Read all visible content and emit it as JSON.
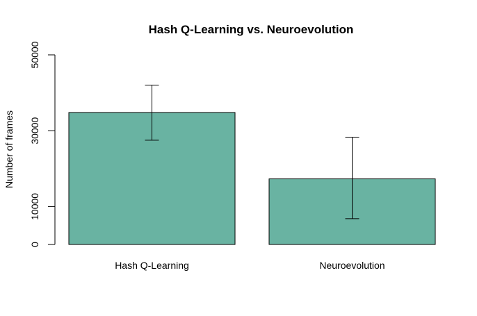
{
  "chart_data": {
    "type": "bar",
    "title": "Hash Q-Learning vs. Neuroevolution",
    "xlabel": "",
    "ylabel": "Number of frames",
    "categories": [
      "Hash Q-Learning",
      "Neuroevolution"
    ],
    "values": [
      34800,
      17300
    ],
    "error_low": [
      27500,
      6800
    ],
    "error_high": [
      42000,
      28300
    ],
    "ylim": [
      0,
      50000
    ],
    "y_ticks": [
      0,
      10000,
      30000,
      50000
    ],
    "y_tick_labels": [
      "0",
      "10000",
      "30000",
      "50000"
    ],
    "bar_color": "#69b3a2",
    "grid": false,
    "legend": "none"
  }
}
